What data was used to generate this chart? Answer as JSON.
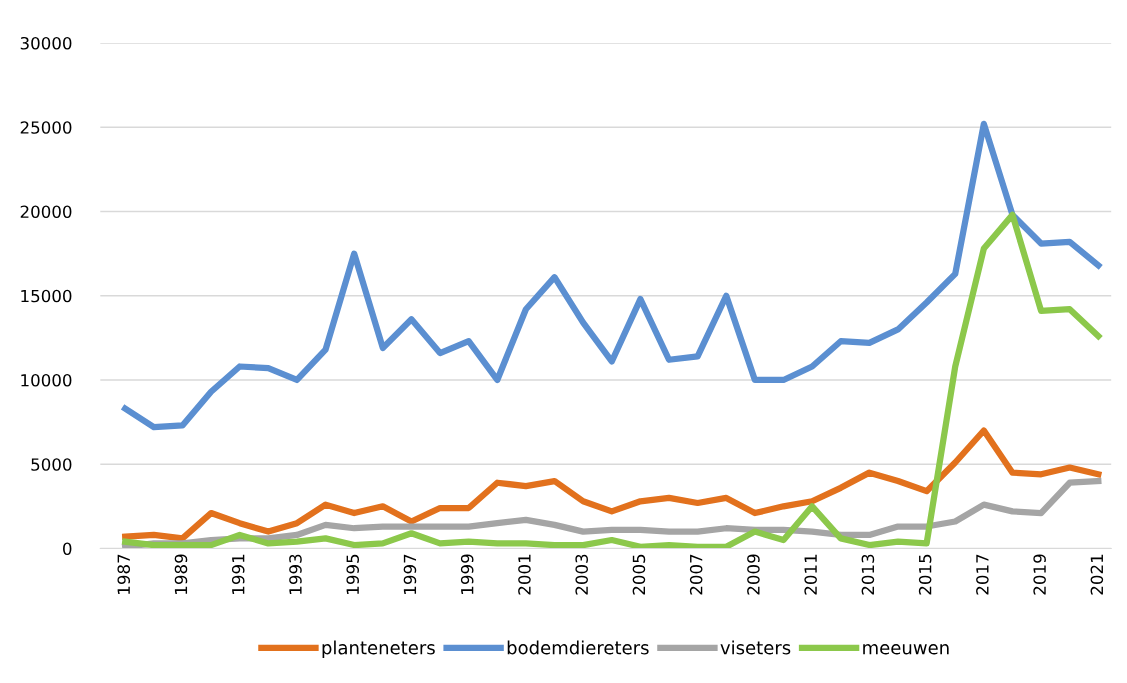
{
  "chart_data": {
    "type": "line",
    "categories": [
      "1987",
      null,
      "1989",
      null,
      "1991",
      null,
      "1993",
      null,
      "1995",
      null,
      "1997",
      null,
      "1999",
      null,
      "2001",
      null,
      "2003",
      null,
      "2005",
      null,
      "2007",
      null,
      "2009",
      null,
      "2011",
      null,
      "2013",
      null,
      "2015",
      null,
      "2017",
      null,
      "2019",
      null,
      "2021"
    ],
    "series": [
      {
        "name": "planteneters",
        "color": "#e2711d",
        "values": [
          700,
          800,
          600,
          2100,
          1500,
          1000,
          1500,
          2600,
          2100,
          2500,
          1600,
          2400,
          2400,
          3900,
          3700,
          4000,
          2800,
          2200,
          2800,
          3000,
          2700,
          3000,
          2100,
          2500,
          2800,
          3600,
          4500,
          4000,
          3400,
          5100,
          7000,
          4500,
          4400,
          4800,
          4400
        ]
      },
      {
        "name": "bodemdiereters",
        "color": "#5b8fd1",
        "values": [
          8300,
          7200,
          7300,
          9300,
          10800,
          10700,
          10000,
          11800,
          17500,
          11900,
          13600,
          11600,
          12300,
          10000,
          14200,
          16100,
          13400,
          11100,
          14800,
          11200,
          11400,
          15000,
          10000,
          10000,
          10800,
          12300,
          12200,
          13000,
          14600,
          16300,
          25200,
          19800,
          18100,
          18200,
          16800
        ]
      },
      {
        "name": "viseters",
        "color": "#a5a5a5",
        "values": [
          100,
          300,
          300,
          500,
          600,
          600,
          800,
          1400,
          1200,
          1300,
          1300,
          1300,
          1300,
          1500,
          1700,
          1400,
          1000,
          1100,
          1100,
          1000,
          1000,
          1200,
          1100,
          1100,
          1000,
          800,
          800,
          1300,
          1300,
          1600,
          2600,
          2200,
          2100,
          3900,
          4000
        ]
      },
      {
        "name": "meeuwen",
        "color": "#8cc84b",
        "values": [
          400,
          200,
          200,
          200,
          800,
          300,
          400,
          600,
          200,
          300,
          900,
          300,
          400,
          300,
          300,
          200,
          200,
          500,
          100,
          200,
          100,
          100,
          1000,
          500,
          2500,
          600,
          200,
          400,
          300,
          10800,
          17800,
          19800,
          14100,
          14200,
          12600
        ]
      }
    ],
    "ylim": [
      0,
      30000
    ],
    "yticks": [
      0,
      5000,
      10000,
      15000,
      20000,
      25000,
      30000
    ],
    "grid": "y",
    "legend": "bottom",
    "line_style": "solid",
    "marker": "none"
  }
}
